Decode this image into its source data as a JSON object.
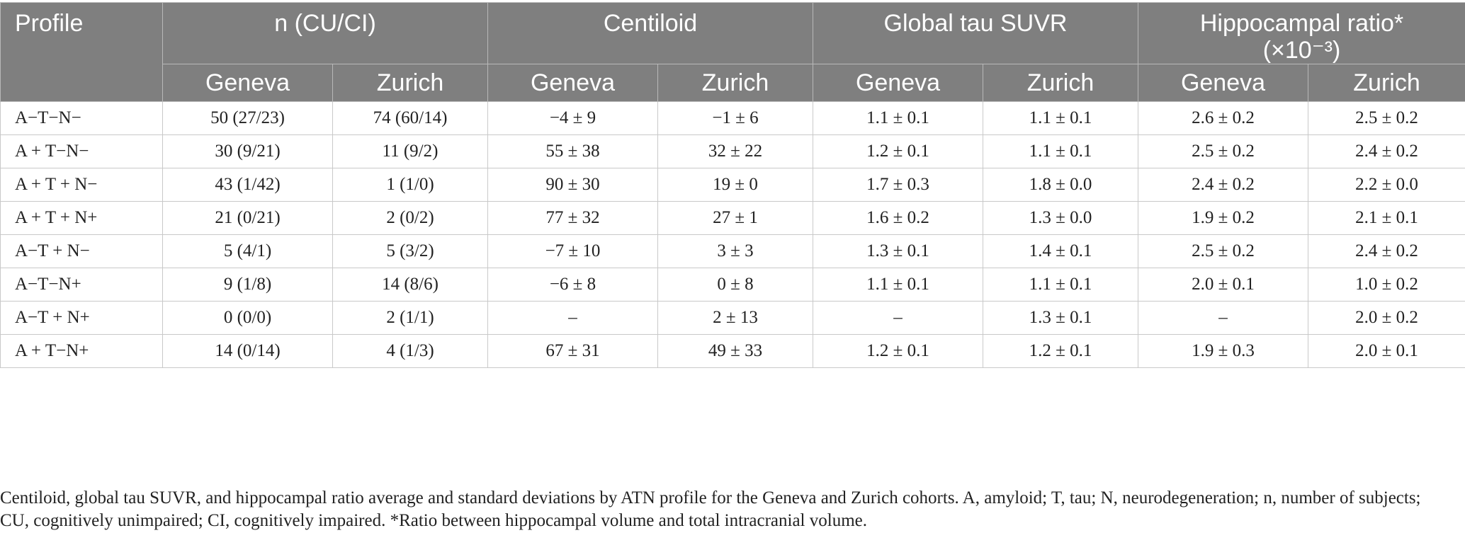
{
  "table": {
    "headers": {
      "profile": "Profile",
      "groups": [
        "n (CU/CI)",
        "Centiloid",
        "Global tau SUVR",
        "Hippocampal ratio*",
        "(×10⁻³)"
      ],
      "sub": [
        "Geneva",
        "Zurich",
        "Geneva",
        "Zurich",
        "Geneva",
        "Zurich",
        "Geneva",
        "Zurich"
      ]
    },
    "rows": [
      [
        "A−T−N−",
        "50 (27/23)",
        "74 (60/14)",
        "−4 ± 9",
        "−1 ± 6",
        "1.1 ± 0.1",
        "1.1 ± 0.1",
        "2.6 ± 0.2",
        "2.5 ± 0.2"
      ],
      [
        "A + T−N−",
        "30 (9/21)",
        "11 (9/2)",
        "55 ± 38",
        "32 ± 22",
        "1.2 ± 0.1",
        "1.1 ± 0.1",
        "2.5 ± 0.2",
        "2.4 ± 0.2"
      ],
      [
        "A + T + N−",
        "43 (1/42)",
        "1 (1/0)",
        "90 ± 30",
        "19 ± 0",
        "1.7 ± 0.3",
        "1.8 ± 0.0",
        "2.4 ± 0.2",
        "2.2 ± 0.0"
      ],
      [
        "A + T + N+",
        "21 (0/21)",
        "2 (0/2)",
        "77 ± 32",
        "27 ± 1",
        "1.6 ± 0.2",
        "1.3 ± 0.0",
        "1.9 ± 0.2",
        "2.1 ± 0.1"
      ],
      [
        "A−T + N−",
        "5 (4/1)",
        "5 (3/2)",
        "−7 ± 10",
        "3 ± 3",
        "1.3 ± 0.1",
        "1.4 ± 0.1",
        "2.5 ± 0.2",
        "2.4 ± 0.2"
      ],
      [
        "A−T−N+",
        "9 (1/8)",
        "14 (8/6)",
        "−6 ± 8",
        "0 ± 8",
        "1.1 ± 0.1",
        "1.1 ± 0.1",
        "2.0 ± 0.1",
        "1.0 ± 0.2"
      ],
      [
        "A−T + N+",
        "0 (0/0)",
        "2 (1/1)",
        "–",
        "2 ± 13",
        "–",
        "1.3 ± 0.1",
        "–",
        "2.0 ± 0.2"
      ],
      [
        "A + T−N+",
        "14 (0/14)",
        "4 (1/3)",
        "67 ± 31",
        "49 ± 33",
        "1.2 ± 0.1",
        "1.2 ± 0.1",
        "1.9 ± 0.3",
        "2.0 ± 0.1"
      ]
    ]
  },
  "footnote": "Centiloid, global tau SUVR, and hippocampal ratio average and standard deviations by ATN profile for the Geneva and Zurich cohorts. A, amyloid; T, tau; N, neurodegeneration; n, number of subjects; CU, cognitively unimpaired; CI, cognitively impaired. *Ratio between hippocampal volume and total intracranial volume."
}
